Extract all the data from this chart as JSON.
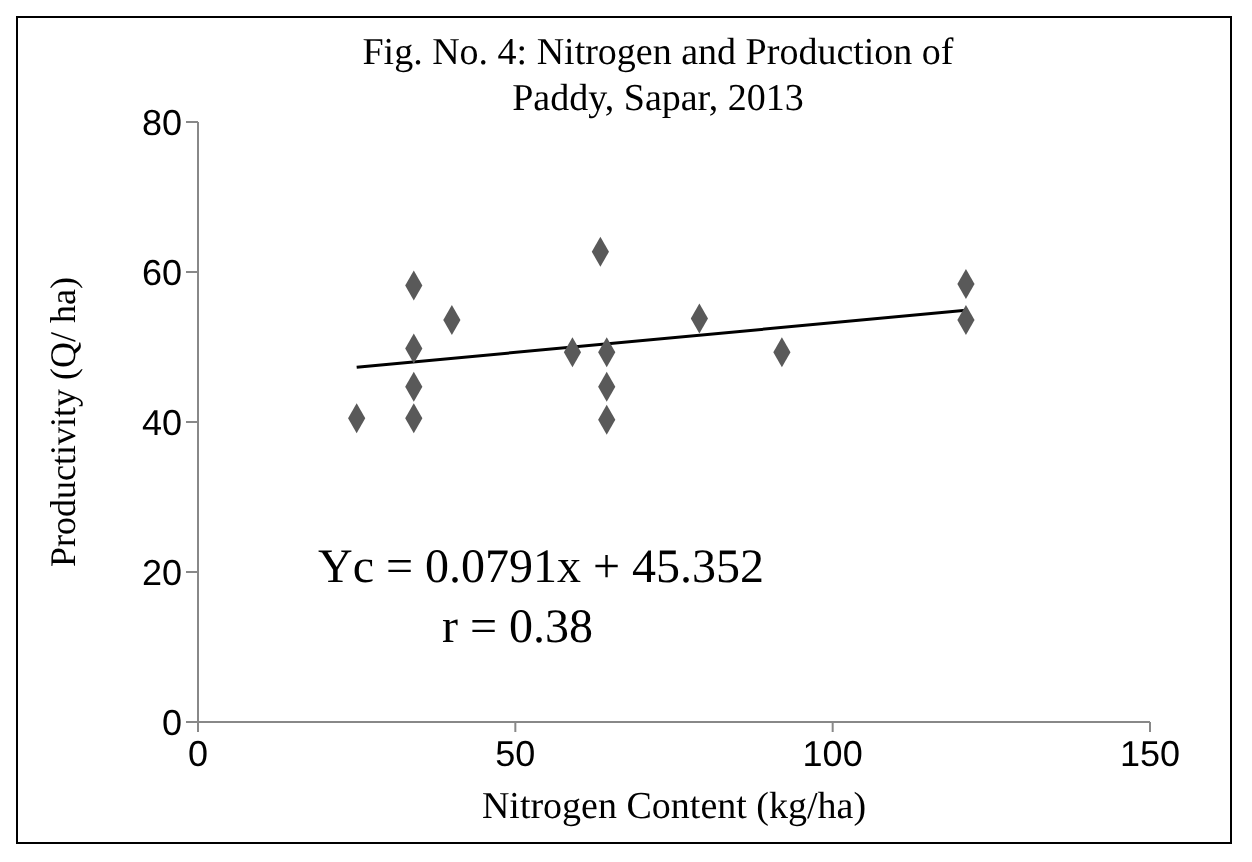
{
  "chart_data": {
    "type": "scatter",
    "title": "Fig. No. 4: Nitrogen and Production of Paddy, Sapar, 2013",
    "xlabel": "Nitrogen Content (kg/ha)",
    "ylabel": "Productivity  (Q/ ha)",
    "xlim": [
      0,
      150
    ],
    "xticks": [
      0,
      50,
      100,
      150
    ],
    "ylim": [
      0,
      80
    ],
    "yticks": [
      0,
      20,
      40,
      60,
      80
    ],
    "grid": false,
    "legend": false,
    "marker": "diamond",
    "series": [
      {
        "color": "#595959",
        "x": [
          25,
          34,
          34,
          34,
          34,
          40,
          59,
          63.4,
          64.4,
          64.4,
          64.4,
          79,
          92,
          121,
          121
        ],
        "values": [
          40.5,
          40.5,
          44.7,
          49.8,
          58.2,
          53.6,
          49.3,
          62.7,
          49.3,
          44.7,
          40.3,
          53.8,
          49.3,
          58.4,
          53.6
        ]
      },
      {
        "type": "line",
        "color": "#000000",
        "marker": "none",
        "x": [
          25,
          121
        ],
        "values": [
          47.3,
          54.9
        ]
      }
    ],
    "annotations": [
      "Yc = 0.0791x + 45.352",
      "r = 0.38"
    ]
  }
}
